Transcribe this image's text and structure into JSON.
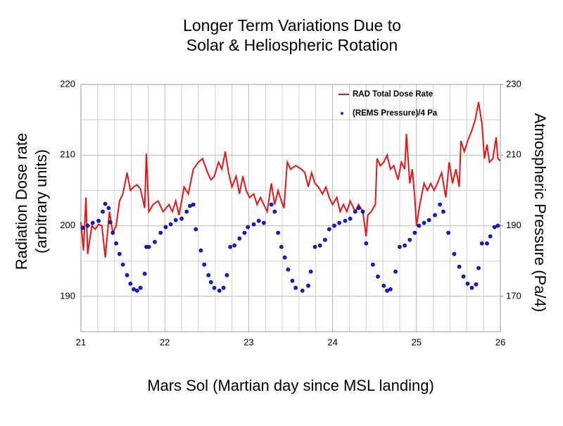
{
  "chart_data": {
    "type": "line",
    "title": [
      "Longer Term Variations Due to",
      "Solar & Heliospheric Rotation"
    ],
    "xlabel": "Mars Sol (Martian day since MSL landing)",
    "ylabel": [
      "Radiation Dose rate",
      "(arbitrary units)"
    ],
    "y2label": "Atmospheric Pressure  (Pa/4)",
    "xlim": [
      21,
      26
    ],
    "xticks": [
      21,
      22,
      23,
      24,
      25,
      26
    ],
    "ylim": [
      185,
      220
    ],
    "yticks": [
      190,
      200,
      210,
      220
    ],
    "y2lim": [
      160,
      230
    ],
    "y2ticks": [
      170,
      190,
      210,
      230
    ],
    "xgrid": [
      21.2,
      21.4,
      21.6,
      21.8,
      22.2,
      22.4,
      22.6,
      22.8,
      23.2,
      23.4,
      23.6,
      23.8,
      24.2,
      24.4,
      24.6,
      24.8,
      25.2,
      25.4,
      25.6,
      25.8
    ],
    "ygrid": [
      195,
      205,
      215
    ],
    "grid": true,
    "legend": "top-right",
    "series": [
      {
        "name": "RAD  Total Dose Rate",
        "type": "line",
        "color": "#e8141a",
        "x": [
          21.0,
          21.03,
          21.06,
          21.08,
          21.13,
          21.17,
          21.21,
          21.25,
          21.29,
          21.34,
          21.38,
          21.42,
          21.46,
          21.5,
          21.55,
          21.59,
          21.63,
          21.67,
          21.71,
          21.76,
          21.78,
          21.81,
          21.86,
          21.92,
          21.98,
          22.05,
          22.09,
          22.13,
          22.17,
          22.23,
          22.28,
          22.34,
          22.4,
          22.45,
          22.51,
          22.55,
          22.59,
          22.64,
          22.68,
          22.72,
          22.76,
          22.8,
          22.85,
          22.89,
          22.93,
          22.97,
          23.01,
          23.06,
          23.1,
          23.14,
          23.18,
          23.22,
          23.27,
          23.31,
          23.35,
          23.39,
          23.42,
          23.46,
          23.5,
          23.56,
          23.63,
          23.67,
          23.71,
          23.75,
          23.79,
          23.83,
          23.88,
          23.92,
          23.96,
          24.0,
          24.05,
          24.09,
          24.13,
          24.17,
          24.21,
          24.27,
          24.31,
          24.36,
          24.4,
          24.42,
          24.46,
          24.51,
          24.53,
          24.57,
          24.61,
          24.65,
          24.69,
          24.73,
          24.78,
          24.82,
          24.86,
          24.88,
          24.92,
          24.95,
          24.98,
          25.0,
          25.04,
          25.09,
          25.13,
          25.17,
          25.21,
          25.25,
          25.3,
          25.35,
          25.39,
          25.43,
          25.47,
          25.51,
          25.53,
          25.57,
          25.61,
          25.66,
          25.7,
          25.74,
          25.78,
          25.81,
          25.84,
          25.87,
          25.91,
          25.95,
          25.97,
          26.0
        ],
        "values": [
          200.5,
          196.5,
          204,
          196,
          200,
          199.5,
          200.2,
          200,
          195.5,
          202,
          199,
          200,
          203.5,
          204.5,
          207.5,
          205,
          205.5,
          205.8,
          205.2,
          202.5,
          210.2,
          202,
          203,
          203.5,
          202,
          203,
          202,
          203.5,
          201.5,
          205.5,
          204.5,
          208,
          209,
          209.5,
          207.5,
          206.5,
          207,
          209,
          208,
          210.5,
          207.5,
          205.5,
          207,
          204.5,
          207,
          205,
          204,
          204.5,
          203,
          204,
          203,
          202,
          206,
          203,
          205,
          203.5,
          202.5,
          209,
          208,
          208.5,
          208,
          207.5,
          205.5,
          207.5,
          206,
          205.5,
          204.5,
          205.5,
          204,
          203,
          204,
          202,
          203,
          202,
          203.5,
          202,
          203,
          202,
          198.5,
          201.5,
          202,
          203,
          209.5,
          208.5,
          209,
          210,
          208,
          208.5,
          206.5,
          209,
          208,
          213,
          206,
          208,
          204,
          200,
          203,
          206,
          205,
          206,
          205,
          206,
          207.5,
          204,
          209,
          206,
          208,
          205.5,
          212,
          210.5,
          212,
          213.5,
          215,
          217.5,
          214.5,
          209.5,
          211.5,
          209,
          209.5,
          212.5,
          209.5,
          209.2
        ]
      },
      {
        "name": "(REMS Pressure)/4 Pa",
        "type": "scatter",
        "axis": "y2",
        "color": "#1c1ccc",
        "x": [
          21.02,
          21.08,
          21.14,
          21.21,
          21.26,
          21.29,
          21.33,
          21.35,
          21.38,
          21.42,
          21.46,
          21.5,
          21.55,
          21.59,
          21.63,
          21.67,
          21.71,
          21.76,
          21.78,
          21.81,
          21.88,
          21.95,
          22.01,
          22.07,
          22.13,
          22.2,
          22.26,
          22.3,
          22.34,
          22.37,
          22.43,
          22.47,
          22.52,
          22.55,
          22.59,
          22.65,
          22.7,
          22.74,
          22.78,
          22.83,
          22.89,
          22.95,
          22.99,
          23.06,
          23.12,
          23.18,
          23.27,
          23.31,
          23.35,
          23.39,
          23.43,
          23.47,
          23.52,
          23.56,
          23.64,
          23.71,
          23.74,
          23.79,
          23.85,
          23.91,
          23.96,
          24.02,
          24.08,
          24.15,
          24.21,
          24.27,
          24.31,
          24.36,
          24.4,
          24.48,
          24.54,
          24.61,
          24.65,
          24.69,
          24.75,
          24.8,
          24.86,
          24.92,
          24.98,
          25.03,
          25.09,
          25.15,
          25.22,
          25.28,
          25.32,
          25.38,
          25.45,
          25.51,
          25.56,
          25.61,
          25.66,
          25.71,
          25.74,
          25.78,
          25.84,
          25.88,
          25.93,
          25.97
        ],
        "values": [
          189.4,
          190,
          190.8,
          191.4,
          194,
          196.2,
          195,
          191,
          188,
          185,
          182,
          179,
          176,
          173.6,
          172,
          171.6,
          172.4,
          176.4,
          184,
          184,
          185.4,
          188,
          189.6,
          190.4,
          191.6,
          192,
          194,
          195.6,
          196,
          189,
          183,
          179,
          176,
          174,
          172.4,
          171.6,
          172.4,
          176,
          184,
          184.4,
          186.4,
          188,
          189.6,
          190.4,
          191.4,
          190.8,
          196,
          194,
          188,
          184,
          181,
          177.6,
          174.4,
          172.4,
          171.6,
          173,
          177,
          184,
          184.4,
          186,
          189,
          190,
          190.8,
          191.4,
          192,
          194,
          195,
          194,
          185,
          179,
          175.6,
          173,
          171.6,
          172,
          177,
          184,
          184.4,
          186,
          188,
          190,
          190.8,
          191.6,
          193,
          196,
          194,
          188,
          182,
          178.4,
          175.6,
          173.6,
          172.4,
          173.4,
          178,
          185,
          185,
          187,
          189.6,
          190
        ]
      }
    ]
  }
}
